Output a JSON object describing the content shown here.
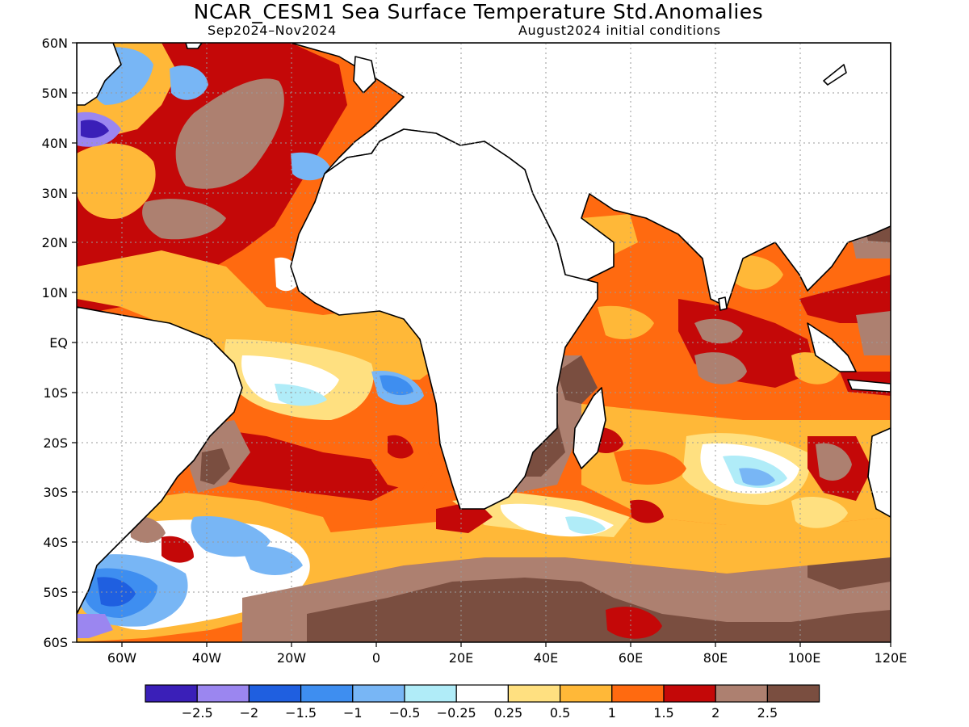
{
  "title": "NCAR_CESM1 Sea Surface Temperature Std.Anomalies",
  "subtitle_left": "Sep2024–Nov2024",
  "subtitle_right": "August2024 initial conditions",
  "lat_labels": [
    "60N",
    "50N",
    "40N",
    "30N",
    "20N",
    "10N",
    "EQ",
    "10S",
    "20S",
    "30S",
    "40S",
    "50S",
    "60S"
  ],
  "lon_labels": [
    "60W",
    "40W",
    "20W",
    "0",
    "20E",
    "40E",
    "60E",
    "80E",
    "100E",
    "120E"
  ],
  "colorbar": {
    "colors": [
      "#3a1fb8",
      "#9b86f0",
      "#1f5fe0",
      "#3e8ef0",
      "#78b6f5",
      "#b0ecf8",
      "#ffffff",
      "#ffe080",
      "#ffb838",
      "#ff6a10",
      "#c40808",
      "#ad8070",
      "#7a4e40"
    ],
    "labels": [
      "−2.5",
      "−2",
      "−1.5",
      "−1",
      "−0.5",
      "−0.25",
      "0.25",
      "0.5",
      "1",
      "1.5",
      "2",
      "2.5"
    ]
  }
}
